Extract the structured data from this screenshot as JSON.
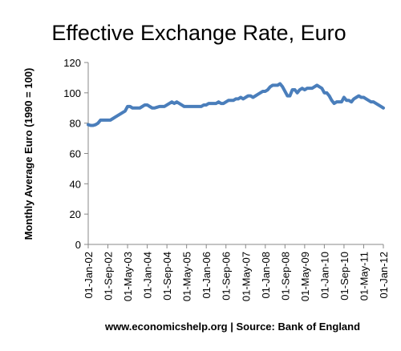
{
  "chart_data": {
    "type": "line",
    "title": "Effective Exchange Rate, Euro",
    "y_label": "Monthly Average Euro (1990 = 100)",
    "footer": "www.economicshelp.org | Source: Bank of England",
    "categories": [
      "01-Jan-02",
      null,
      null,
      null,
      null,
      null,
      null,
      null,
      "01-Sep-02",
      null,
      null,
      null,
      null,
      null,
      null,
      null,
      "01-May-03",
      null,
      null,
      null,
      null,
      null,
      null,
      null,
      "01-Jan-04",
      null,
      null,
      null,
      null,
      null,
      null,
      null,
      "01-Sep-04",
      null,
      null,
      null,
      null,
      null,
      null,
      null,
      "01-May-05",
      null,
      null,
      null,
      null,
      null,
      null,
      null,
      "01-Jan-06",
      null,
      null,
      null,
      null,
      null,
      null,
      null,
      "01-Sep-06",
      null,
      null,
      null,
      null,
      null,
      null,
      null,
      "01-May-07",
      null,
      null,
      null,
      null,
      null,
      null,
      null,
      "01-Jan-08",
      null,
      null,
      null,
      null,
      null,
      null,
      null,
      "01-Sep-08",
      null,
      null,
      null,
      null,
      null,
      null,
      null,
      "01-May-09",
      null,
      null,
      null,
      null,
      null,
      null,
      null,
      "01-Jan-10",
      null,
      null,
      null,
      null,
      null,
      null,
      null,
      "01-Sep-10",
      null,
      null,
      null,
      null,
      null,
      null,
      null,
      "01-May-11",
      null,
      null,
      null,
      null,
      null,
      null,
      null,
      "01-Jan-12"
    ],
    "values": [
      79,
      78.5,
      78.5,
      79,
      80,
      82,
      82,
      82,
      82,
      82,
      83,
      84,
      85,
      86,
      87,
      88,
      91,
      91,
      90,
      90,
      90,
      90,
      91,
      92,
      92,
      91,
      90,
      90,
      90.5,
      91,
      91,
      91,
      92,
      93,
      94,
      93,
      94,
      93,
      92,
      91,
      91,
      91,
      91,
      91,
      91,
      91,
      91,
      92,
      92,
      93,
      93,
      93,
      93,
      94,
      93,
      93,
      94,
      95,
      95,
      95,
      96,
      96,
      97,
      96,
      97,
      98,
      98,
      97,
      98,
      99,
      100,
      101,
      101,
      102,
      104,
      105,
      105,
      105,
      106,
      104,
      101,
      98,
      98,
      102,
      102,
      100,
      102,
      103,
      102,
      103,
      103,
      103,
      104,
      105,
      104,
      103,
      100,
      100,
      98,
      95,
      93,
      94,
      94,
      94,
      97,
      95,
      95,
      94,
      96,
      97,
      98,
      97,
      97,
      96,
      95,
      94,
      94,
      93,
      92,
      91,
      90
    ],
    "color": "#4a7ebb",
    "ylim": [
      0,
      120
    ],
    "yticks": [
      0,
      20,
      40,
      60,
      80,
      100,
      120
    ],
    "grid": false
  }
}
